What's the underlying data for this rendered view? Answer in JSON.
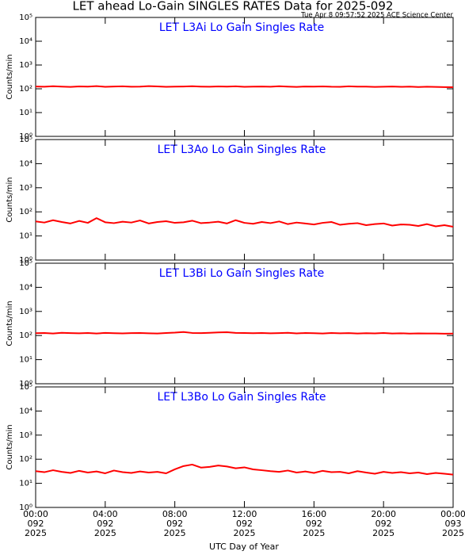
{
  "title": "LET ahead Lo-Gain SINGLES RATES Data for 2025-092",
  "subtitle": "Tue Apr  8 09:57:52 2025 ACE Science Center",
  "xlabel": "UTC Day of Year",
  "chart_data": [
    {
      "type": "line",
      "title": "LET L3Ai Lo Gain Singles Rate",
      "title_color": "#0000ff",
      "ylabel": "Counts/min",
      "log_y": true,
      "xlim": [
        0,
        24
      ],
      "xticks": [
        0,
        4,
        8,
        12,
        16,
        20,
        24
      ],
      "ylim": [
        1,
        100000
      ],
      "yticks": [
        {
          "value": 1,
          "label": "10⁰"
        },
        {
          "value": 10,
          "label": "10¹"
        },
        {
          "value": 100,
          "label": "10²"
        },
        {
          "value": 1000,
          "label": "10³"
        },
        {
          "value": 10000,
          "label": "10⁴"
        },
        {
          "value": 100000,
          "label": "10⁵"
        }
      ],
      "x": [
        0,
        0.5,
        1,
        1.5,
        2,
        2.5,
        3,
        3.5,
        4,
        4.5,
        5,
        5.5,
        6,
        6.5,
        7,
        7.5,
        8,
        8.5,
        9,
        9.5,
        10,
        10.5,
        11,
        11.5,
        12,
        12.5,
        13,
        13.5,
        14,
        14.5,
        15,
        15.5,
        16,
        16.5,
        17,
        17.5,
        18,
        18.5,
        19,
        19.5,
        20,
        20.5,
        21,
        21.5,
        22,
        22.5,
        23,
        23.5,
        24
      ],
      "series": [
        {
          "color": "#ff0000",
          "values": [
            125,
            122,
            128,
            124,
            120,
            126,
            123,
            130,
            121,
            125,
            127,
            122,
            124,
            129,
            126,
            121,
            123,
            125,
            128,
            124,
            122,
            126,
            123,
            127,
            121,
            124,
            125,
            122,
            128,
            123,
            120,
            125,
            124,
            126,
            122,
            121,
            127,
            123,
            124,
            120,
            122,
            125,
            121,
            123,
            119,
            122,
            120,
            118,
            117
          ]
        }
      ]
    },
    {
      "type": "line",
      "title": "LET L3Ao Lo Gain Singles Rate",
      "title_color": "#0000ff",
      "ylabel": "Counts/min",
      "log_y": true,
      "xlim": [
        0,
        24
      ],
      "xticks": [
        0,
        4,
        8,
        12,
        16,
        20,
        24
      ],
      "ylim": [
        1,
        100000
      ],
      "yticks": [
        {
          "value": 1,
          "label": "10⁰"
        },
        {
          "value": 10,
          "label": "10¹"
        },
        {
          "value": 100,
          "label": "10²"
        },
        {
          "value": 1000,
          "label": "10³"
        },
        {
          "value": 10000,
          "label": "10⁴"
        },
        {
          "value": 100000,
          "label": "10⁵"
        }
      ],
      "x": [
        0,
        0.5,
        1,
        1.5,
        2,
        2.5,
        3,
        3.5,
        4,
        4.5,
        5,
        5.5,
        6,
        6.5,
        7,
        7.5,
        8,
        8.5,
        9,
        9.5,
        10,
        10.5,
        11,
        11.5,
        12,
        12.5,
        13,
        13.5,
        14,
        14.5,
        15,
        15.5,
        16,
        16.5,
        17,
        17.5,
        18,
        18.5,
        19,
        19.5,
        20,
        20.5,
        21,
        21.5,
        22,
        22.5,
        23,
        23.5,
        24
      ],
      "series": [
        {
          "color": "#ff0000",
          "values": [
            40,
            36,
            45,
            38,
            33,
            42,
            35,
            55,
            37,
            34,
            39,
            36,
            44,
            33,
            38,
            41,
            35,
            37,
            43,
            34,
            36,
            39,
            33,
            45,
            35,
            32,
            38,
            34,
            40,
            31,
            36,
            33,
            30,
            35,
            38,
            29,
            32,
            34,
            28,
            31,
            33,
            27,
            30,
            29,
            26,
            31,
            25,
            28,
            24
          ]
        }
      ]
    },
    {
      "type": "line",
      "title": "LET L3Bi Lo Gain Singles Rate",
      "title_color": "#0000ff",
      "ylabel": "Counts/min",
      "log_y": true,
      "xlim": [
        0,
        24
      ],
      "xticks": [
        0,
        4,
        8,
        12,
        16,
        20,
        24
      ],
      "ylim": [
        1,
        100000
      ],
      "yticks": [
        {
          "value": 1,
          "label": "10⁰"
        },
        {
          "value": 10,
          "label": "10¹"
        },
        {
          "value": 100,
          "label": "10²"
        },
        {
          "value": 1000,
          "label": "10³"
        },
        {
          "value": 10000,
          "label": "10⁴"
        },
        {
          "value": 100000,
          "label": "10⁵"
        }
      ],
      "x": [
        0,
        0.5,
        1,
        1.5,
        2,
        2.5,
        3,
        3.5,
        4,
        4.5,
        5,
        5.5,
        6,
        6.5,
        7,
        7.5,
        8,
        8.5,
        9,
        9.5,
        10,
        10.5,
        11,
        11.5,
        12,
        12.5,
        13,
        13.5,
        14,
        14.5,
        15,
        15.5,
        16,
        16.5,
        17,
        17.5,
        18,
        18.5,
        19,
        19.5,
        20,
        20.5,
        21,
        21.5,
        22,
        22.5,
        23,
        23.5,
        24
      ],
      "series": [
        {
          "color": "#ff0000",
          "values": [
            125,
            128,
            122,
            130,
            126,
            124,
            127,
            121,
            129,
            125,
            123,
            126,
            128,
            124,
            122,
            127,
            132,
            140,
            128,
            126,
            130,
            135,
            138,
            129,
            127,
            125,
            128,
            124,
            126,
            130,
            123,
            127,
            125,
            122,
            128,
            124,
            126,
            121,
            125,
            123,
            127,
            122,
            124,
            120,
            123,
            121,
            122,
            119,
            120
          ]
        }
      ]
    },
    {
      "type": "line",
      "title": "LET L3Bo Lo Gain Singles Rate",
      "title_color": "#0000ff",
      "ylabel": "Counts/min",
      "log_y": true,
      "xlim": [
        0,
        24
      ],
      "xticks": [
        {
          "value": 0,
          "label": "00:00"
        },
        {
          "value": 4,
          "label": "04:00"
        },
        {
          "value": 8,
          "label": "08:00"
        },
        {
          "value": 12,
          "label": "12:00"
        },
        {
          "value": 16,
          "label": "16:00"
        },
        {
          "value": 20,
          "label": "20:00"
        },
        {
          "value": 24,
          "label": "00:00"
        }
      ],
      "xtick_sublabels": [
        [
          "092",
          "2025"
        ],
        [
          "092",
          "2025"
        ],
        [
          "092",
          "2025"
        ],
        [
          "092",
          "2025"
        ],
        [
          "092",
          "2025"
        ],
        [
          "092",
          "2025"
        ],
        [
          "093",
          "2025"
        ]
      ],
      "ylim": [
        1,
        100000
      ],
      "yticks": [
        {
          "value": 1,
          "label": "10⁰"
        },
        {
          "value": 10,
          "label": "10¹"
        },
        {
          "value": 100,
          "label": "10²"
        },
        {
          "value": 1000,
          "label": "10³"
        },
        {
          "value": 10000,
          "label": "10⁴"
        },
        {
          "value": 100000,
          "label": "10⁵"
        }
      ],
      "x": [
        0,
        0.5,
        1,
        1.5,
        2,
        2.5,
        3,
        3.5,
        4,
        4.5,
        5,
        5.5,
        6,
        6.5,
        7,
        7.5,
        8,
        8.5,
        9,
        9.5,
        10,
        10.5,
        11,
        11.5,
        12,
        12.5,
        13,
        13.5,
        14,
        14.5,
        15,
        15.5,
        16,
        16.5,
        17,
        17.5,
        18,
        18.5,
        19,
        19.5,
        20,
        20.5,
        21,
        21.5,
        22,
        22.5,
        23,
        23.5,
        24
      ],
      "series": [
        {
          "color": "#ff0000",
          "values": [
            32,
            29,
            35,
            30,
            27,
            33,
            28,
            31,
            26,
            34,
            29,
            27,
            31,
            28,
            30,
            26,
            38,
            52,
            60,
            45,
            48,
            55,
            50,
            42,
            46,
            38,
            35,
            32,
            30,
            34,
            28,
            31,
            27,
            33,
            29,
            30,
            26,
            32,
            28,
            25,
            30,
            27,
            29,
            26,
            28,
            24,
            27,
            25,
            23
          ]
        }
      ]
    }
  ]
}
